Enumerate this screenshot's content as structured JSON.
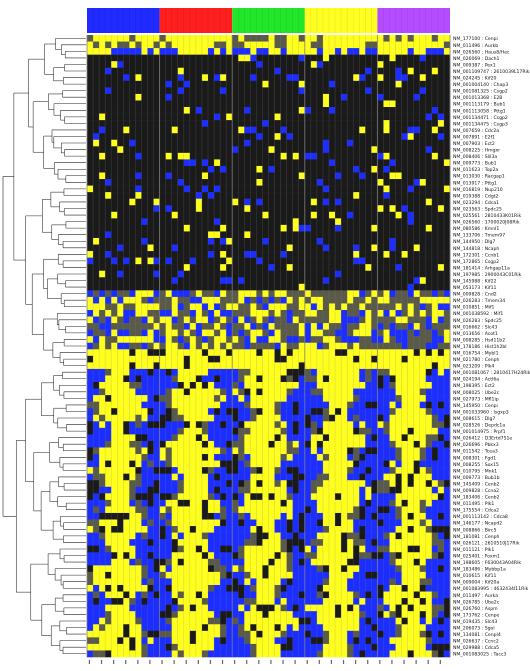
{
  "chart_data": {
    "type": "heatmap",
    "title": "",
    "xlabel": "",
    "ylabel": "",
    "grid": false,
    "legend": "none",
    "column_groups": [
      {
        "color": "#1f2bff",
        "count": 12
      },
      {
        "color": "#ff1f1f",
        "count": 12
      },
      {
        "color": "#22e62a",
        "count": 12
      },
      {
        "color": "#ffff22",
        "count": 12
      },
      {
        "color": "#b44cff",
        "count": 12
      }
    ],
    "colors": {
      "low": "#1b2dff",
      "mid": "#1a1a1a",
      "high": "#ffff1e",
      "mid_gray": "#5a5a4a",
      "line": "#808080"
    },
    "value_range": [
      -1,
      1
    ],
    "rows": [
      "NM_177100 : Cenpi",
      "NM_011496 : Aurkb",
      "NM_026560 : Haus8/Hec",
      "NM_026069 : Dach1",
      "NM_009387 : Pex1",
      "NM_001109747 : 2610039L17Rik",
      "NM_024245 : Kif20",
      "NM_001004140 : Chap3",
      "NM_001081325 : Csgp2",
      "NM_001013368 : E2B",
      "NM_001113179 : Bub1",
      "NM_001113058 : Pttg1",
      "NM_001134471 : Csgp2",
      "NM_001134475 : Csgp3",
      "NM_007659 : Cdc2a",
      "NM_007891 : E2f1",
      "NM_007903 : Ect2",
      "NM_008225 : Hmgxr",
      "NM_008406 : Slil3a",
      "NM_009773 : Bub1",
      "NM_011623 : Top2a",
      "NM_013030 : Racgap1",
      "NM_013917 : Pttg1",
      "NM_016819 : Nup210",
      "NM_019388 : Cdgt2",
      "NM_023294 : Cdca1",
      "NM_023563 : Spdc25",
      "NM_025561 : 2810433K01Rik",
      "NM_026560 : 1700020J08Rik",
      "NM_080586 : Kmnl1",
      "NM_133706 : Tmem97",
      "NM_144950 : Dlg7",
      "NM_144818 : Ncaph",
      "NM_172301 : Ccnb1",
      "NM_172865 : Csgp2",
      "NM_181414 : Arhgap11a",
      "NM_197985 : 2900043C01Rik",
      "NM_145988 : Kif22",
      "NM_053173 : Kif11",
      "NM_009828 : Cnd2",
      "NM_026283 : Tmem34",
      "NM_010851 : Mif1",
      "NM_001038592 : Mif1",
      "NM_026283 : Spdc25",
      "NM_016662 : Slc43",
      "NM_013656 : Acot1",
      "NM_008285 : Hsd11b2",
      "NM_178186 : Hist1h2bl",
      "NM_016754 : Mybl1",
      "NM_021780 : Cenph",
      "NM_023209 : Plk4",
      "NM_001081067 : 2810417H24Rik",
      "NM_024194 : Actl6a",
      "NM_198395 : Ect2",
      "NM_008025 : Ube2c",
      "NM_027973 : Mfl1ip",
      "NM_145950 : Cenpi",
      "NM_001033960 : Isgxp3",
      "NM_008615 : Dlg7",
      "NM_028526 : Depdc1a",
      "NM_001014975 : Prpf1",
      "NM_026412 : D3Ertd751e",
      "NM_026696 : Pbkx3",
      "NM_011542 : Tcea3",
      "NM_008301 : Fgd1",
      "NM_008255 : Sox15",
      "NM_010795 : Mnk1",
      "NM_009773 : Bub1b",
      "NM_145409 : Cenb2",
      "NM_009828 : Ccna2",
      "NM_183406 : Cenb2",
      "NM_011495 : Plk1",
      "NM_175554 : Cdca2",
      "NM_001113142 : Cdca8",
      "NM_146177 : Ncapd2",
      "NM_008866 : Birc5",
      "NM_181081 : Cenph",
      "NM_026121 : 2610510J17Rik",
      "NM_011121 : Plk1",
      "NM_025401 : Foxm1",
      "NM_198605 : F630043A04Rik",
      "NM_183486 : Mybbp1a",
      "NM_010615 : Kif11",
      "NM_009004 : Kif20a",
      "NM_001083995 : 4632434I11Rik",
      "NM_011497 : Aurka",
      "NM_026785 : Ube2c",
      "NM_026760 : Aspm",
      "NM_173762 : Cenpe",
      "NM_019435 : Slc43",
      "NM_206073 : Sgol",
      "NM_134081 : Cenpl4",
      "NM_026637 : Ccnc2",
      "NM_029988 : Cdca5",
      "NM_001083025 : Tacc3"
    ]
  }
}
